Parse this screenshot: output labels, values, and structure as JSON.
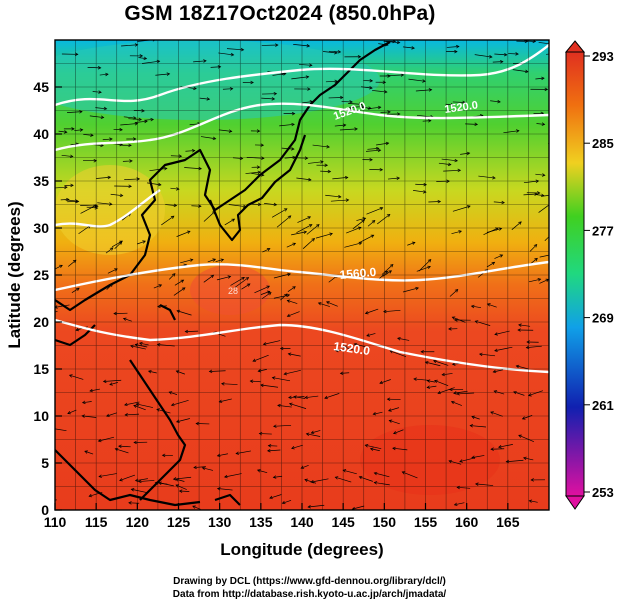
{
  "title": "GSM 18Z17Oct2024 (850.0hPa)",
  "chart_data": {
    "type": "heatmap",
    "title": "GSM 18Z17Oct2024 (850.0hPa)",
    "xlabel": "Longitude (degrees)",
    "ylabel": "Latitude  (degrees)",
    "xlim": [
      110,
      170
    ],
    "ylim": [
      0,
      50
    ],
    "x_ticks": [
      "110",
      "115",
      "120",
      "125",
      "130",
      "135",
      "140",
      "145",
      "150",
      "155",
      "160",
      "165"
    ],
    "y_ticks": [
      "0",
      "5",
      "10",
      "15",
      "20",
      "25",
      "30",
      "35",
      "40",
      "45"
    ],
    "grid": true,
    "colorbar": {
      "ticks": [
        "293",
        "285",
        "277",
        "269",
        "261",
        "253"
      ],
      "range": [
        253,
        293
      ],
      "colors": [
        "#e01090",
        "#1020b0",
        "#10a0e0",
        "#20d030",
        "#f0e020",
        "#f07010",
        "#e03020"
      ]
    },
    "contour_labels": [
      "1520.0",
      "1560.0",
      "1520.0",
      "1520.0"
    ],
    "land_mark_labels": [
      "28"
    ]
  },
  "credits": {
    "line1": "Drawing by DCL (https://www.gfd-dennou.org/library/dcl/)",
    "line2": "Data from http://database.rish.kyoto-u.ac.jp/arch/jmadata/"
  },
  "colors": {
    "warm": "#e8401c",
    "mid": "#f0a018",
    "cool": "#38d838",
    "cold": "#08b0e8",
    "contour": "#ffffff",
    "vector": "#000000"
  }
}
